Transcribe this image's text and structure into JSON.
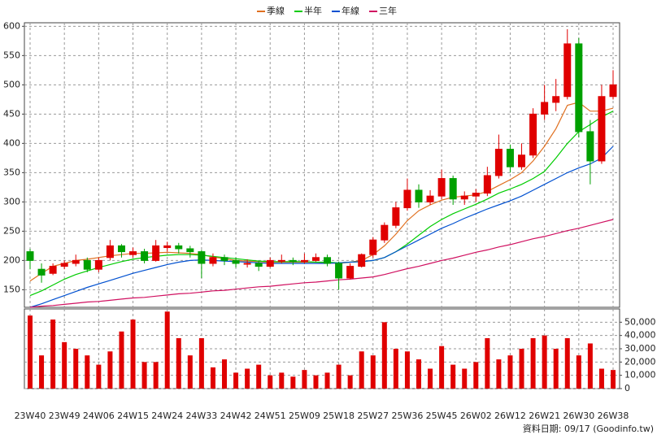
{
  "chart_data": [
    {
      "type": "candlestick",
      "open": [
        215,
        185,
        178,
        190,
        195,
        200,
        185,
        205,
        225,
        210,
        215,
        200,
        222,
        225,
        220,
        215,
        195,
        205,
        200,
        195,
        195,
        190,
        200,
        200,
        198,
        200,
        205,
        195,
        170,
        190,
        210,
        235,
        260,
        290,
        320,
        300,
        310,
        340,
        305,
        310,
        315,
        345,
        390,
        360,
        380,
        450,
        470,
        480,
        570,
        420,
        370,
        480
      ],
      "high": [
        220,
        195,
        195,
        200,
        210,
        205,
        205,
        235,
        228,
        222,
        220,
        235,
        232,
        230,
        225,
        218,
        212,
        210,
        205,
        202,
        200,
        205,
        210,
        205,
        212,
        212,
        210,
        198,
        195,
        212,
        240,
        265,
        300,
        340,
        330,
        320,
        355,
        345,
        318,
        322,
        360,
        415,
        398,
        400,
        460,
        500,
        510,
        595,
        580,
        440,
        500,
        525
      ],
      "low": [
        185,
        162,
        175,
        185,
        190,
        180,
        180,
        200,
        205,
        205,
        195,
        198,
        215,
        212,
        205,
        170,
        190,
        192,
        188,
        188,
        182,
        188,
        195,
        192,
        195,
        198,
        190,
        150,
        168,
        188,
        205,
        230,
        255,
        285,
        290,
        295,
        305,
        295,
        295,
        300,
        310,
        340,
        350,
        355,
        375,
        440,
        455,
        475,
        410,
        330,
        365,
        475
      ],
      "close": [
        200,
        175,
        190,
        195,
        200,
        185,
        200,
        225,
        215,
        215,
        200,
        225,
        225,
        220,
        215,
        195,
        205,
        200,
        195,
        195,
        190,
        200,
        200,
        198,
        200,
        205,
        195,
        170,
        190,
        210,
        235,
        260,
        290,
        320,
        300,
        310,
        340,
        305,
        310,
        315,
        345,
        390,
        360,
        380,
        450,
        470,
        480,
        570,
        420,
        370,
        480,
        500
      ],
      "up_color": "#e00000",
      "down_color": "#00a000",
      "series": [
        {
          "name": "季線",
          "color": "#e07020",
          "values": [
            165,
            178,
            190,
            195,
            200,
            202,
            205,
            208,
            210,
            212,
            212,
            213,
            214,
            213,
            212,
            210,
            206,
            203,
            200,
            199,
            198,
            197,
            197,
            197,
            197,
            197,
            196,
            195,
            197,
            200,
            210,
            225,
            245,
            268,
            285,
            295,
            303,
            308,
            310,
            312,
            318,
            328,
            338,
            350,
            370,
            395,
            425,
            465,
            470,
            455,
            455,
            460
          ]
        },
        {
          "name": "半年",
          "color": "#00cc00",
          "values": [
            140,
            148,
            158,
            168,
            176,
            182,
            188,
            193,
            198,
            202,
            205,
            207,
            209,
            210,
            210,
            209,
            207,
            205,
            203,
            201,
            199,
            198,
            198,
            198,
            198,
            197,
            197,
            196,
            197,
            198,
            200,
            205,
            215,
            228,
            243,
            258,
            270,
            280,
            288,
            296,
            305,
            315,
            322,
            330,
            340,
            352,
            375,
            400,
            420,
            432,
            445,
            455
          ]
        },
        {
          "name": "年線",
          "color": "#0050d0",
          "values": [
            120,
            126,
            133,
            140,
            147,
            154,
            160,
            166,
            172,
            178,
            183,
            188,
            193,
            197,
            200,
            201,
            200,
            199,
            198,
            197,
            196,
            195,
            195,
            195,
            195,
            195,
            195,
            196,
            197,
            198,
            200,
            205,
            215,
            225,
            235,
            245,
            255,
            263,
            272,
            280,
            288,
            295,
            302,
            310,
            320,
            330,
            340,
            350,
            358,
            365,
            375,
            395
          ]
        },
        {
          "name": "三年",
          "color": "#d01060",
          "values": [
            120,
            122,
            123,
            125,
            127,
            129,
            130,
            132,
            134,
            136,
            137,
            139,
            141,
            143,
            144,
            146,
            148,
            149,
            151,
            153,
            155,
            156,
            158,
            160,
            162,
            163,
            165,
            167,
            168,
            170,
            172,
            176,
            181,
            186,
            190,
            195,
            200,
            204,
            209,
            214,
            218,
            223,
            227,
            232,
            237,
            241,
            246,
            251,
            255,
            260,
            265,
            270
          ]
        }
      ],
      "ylim": [
        120,
        606
      ],
      "yticks": [
        150,
        200,
        250,
        300,
        350,
        400,
        450,
        500,
        550,
        600
      ],
      "grid": true
    },
    {
      "type": "bar",
      "categories": [
        "23W40",
        null,
        null,
        "23W49",
        null,
        null,
        "24W06",
        null,
        null,
        "24W15",
        null,
        null,
        "24W24",
        null,
        null,
        "24W33",
        null,
        null,
        "24W42",
        null,
        null,
        "24W51",
        null,
        null,
        "25W09",
        null,
        null,
        "25W18",
        null,
        null,
        "25W27",
        null,
        null,
        "25W36",
        null,
        null,
        "25W45",
        null,
        null,
        "26W02",
        null,
        null,
        "26W12",
        null,
        null,
        "26W21",
        null,
        null,
        "26W30",
        null,
        null,
        "26W38"
      ],
      "values": [
        55000,
        25000,
        52000,
        35000,
        30000,
        25000,
        18000,
        28000,
        43000,
        52000,
        20000,
        20000,
        58000,
        38000,
        25000,
        38000,
        16000,
        22000,
        12000,
        15000,
        18000,
        10000,
        12000,
        9000,
        14000,
        10000,
        12000,
        18000,
        10000,
        28000,
        25000,
        50000,
        30000,
        28000,
        22000,
        15000,
        32000,
        18000,
        15000,
        20000,
        38000,
        22000,
        25000,
        30000,
        38000,
        40000,
        30000,
        38000,
        25000,
        34000,
        15000,
        14000
      ],
      "color": "#e00000",
      "ylim": [
        0,
        60000
      ],
      "yticks": [
        0,
        {
          "value": 10000,
          "label": "10,000"
        },
        {
          "value": 20000,
          "label": "20,000"
        },
        {
          "value": 30000,
          "label": "30,000"
        },
        {
          "value": 40000,
          "label": "40,000"
        },
        {
          "value": 50000,
          "label": "50,000"
        }
      ],
      "grid": true,
      "note": "資料日期: 09/17 (Goodinfo.tw)"
    }
  ]
}
